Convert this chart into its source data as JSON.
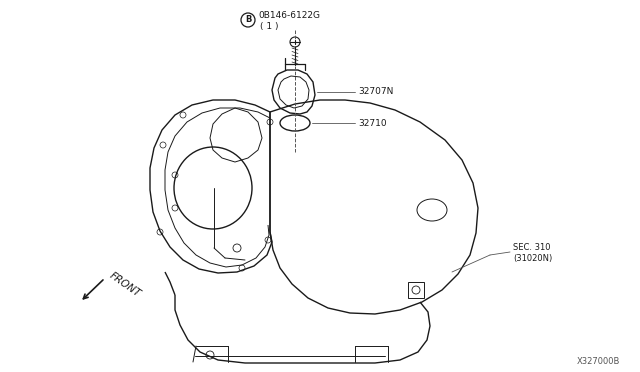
{
  "bg_color": "#ffffff",
  "line_color": "#1a1a1a",
  "label_part1": "0B146-6122G",
  "label_part1_sub": "( 1 )",
  "label_32707": "32707N",
  "label_32710": "32710",
  "label_sec": "SEC. 310",
  "label_sec2": "(31020N)",
  "label_front": "FRONT",
  "label_code": "X327000B",
  "figsize": [
    6.4,
    3.72
  ],
  "dpi": 100
}
